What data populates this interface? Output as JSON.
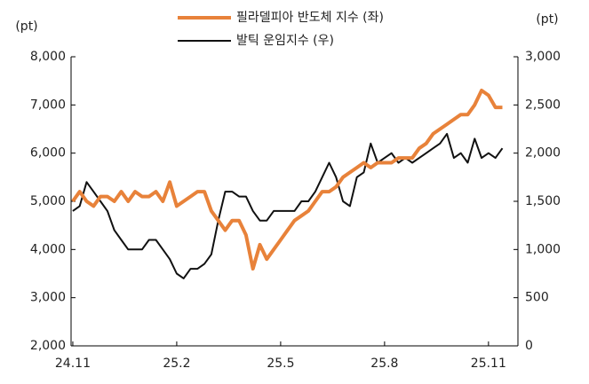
{
  "chart_data": {
    "type": "line",
    "y_label": "(pt)",
    "y2_label": "(pt)",
    "x": [
      0,
      0.2,
      0.4,
      0.6,
      0.8,
      1.0,
      1.2,
      1.4,
      1.6,
      1.8,
      2.0,
      2.2,
      2.4,
      2.6,
      2.8,
      3.0,
      3.2,
      3.4,
      3.6,
      3.8,
      4.0,
      4.2,
      4.4,
      4.6,
      4.8,
      5.0,
      5.2,
      5.4,
      5.6,
      5.8,
      6.0,
      6.2,
      6.4,
      6.6,
      6.8,
      7.0,
      7.2,
      7.4,
      7.6,
      7.8,
      8.0,
      8.2,
      8.4,
      8.6,
      8.8,
      9.0,
      9.2,
      9.4,
      9.6,
      9.8,
      10.0,
      10.2,
      10.4,
      10.6,
      10.8,
      11.0,
      11.2,
      11.4,
      11.6,
      11.8,
      12.0,
      12.2,
      12.4
    ],
    "xlim": [
      -0.05,
      12.85
    ],
    "xticks": [
      {
        "value": 0,
        "label": "24.11"
      },
      {
        "value": 3,
        "label": "25.2"
      },
      {
        "value": 6,
        "label": "25.5"
      },
      {
        "value": 9,
        "label": "25.8"
      },
      {
        "value": 12,
        "label": "25.11"
      }
    ],
    "ylim": [
      2000,
      8000
    ],
    "yticks": [
      {
        "value": 2000,
        "label": "2,000"
      },
      {
        "value": 3000,
        "label": "3,000"
      },
      {
        "value": 4000,
        "label": "4,000"
      },
      {
        "value": 5000,
        "label": "5,000"
      },
      {
        "value": 6000,
        "label": "6,000"
      },
      {
        "value": 7000,
        "label": "7,000"
      },
      {
        "value": 8000,
        "label": "8,000"
      }
    ],
    "y2lim": [
      0,
      3000
    ],
    "y2ticks": [
      0,
      500,
      {
        "value": 1000,
        "label": "1,000"
      },
      {
        "value": 1500,
        "label": "1,500"
      },
      {
        "value": 2000,
        "label": "2,000"
      },
      {
        "value": 2500,
        "label": "2,500"
      },
      {
        "value": 3000,
        "label": "3,000"
      }
    ],
    "series": [
      {
        "name": "필라델피아 반도체 지수 (좌)",
        "color": "#e8823a",
        "axis": "y",
        "values": [
          5000,
          5200,
          5000,
          4900,
          5100,
          5100,
          5000,
          5200,
          5000,
          5200,
          5100,
          5100,
          5200,
          5000,
          5400,
          4900,
          5000,
          5100,
          5200,
          5200,
          4800,
          4600,
          4400,
          4600,
          4600,
          4300,
          3600,
          4100,
          3800,
          4000,
          4200,
          4400,
          4600,
          4700,
          4800,
          5000,
          5200,
          5200,
          5300,
          5500,
          5600,
          5700,
          5800,
          5700,
          5800,
          5800,
          5800,
          5900,
          5900,
          5900,
          6100,
          6200,
          6400,
          6500,
          6600,
          6700,
          6800,
          6800,
          7000,
          7300,
          7200,
          6950,
          6950
        ]
      },
      {
        "name": "발틱 운임지수 (우)",
        "color": "#111111",
        "axis": "y2",
        "values": [
          1400,
          1450,
          1700,
          1600,
          1500,
          1400,
          1200,
          1100,
          1000,
          1000,
          1000,
          1100,
          1100,
          1000,
          900,
          750,
          700,
          800,
          800,
          850,
          950,
          1300,
          1600,
          1600,
          1550,
          1550,
          1400,
          1300,
          1300,
          1400,
          1400,
          1400,
          1400,
          1500,
          1500,
          1600,
          1750,
          1900,
          1750,
          1500,
          1450,
          1750,
          1800,
          2100,
          1900,
          1950,
          2000,
          1900,
          1950,
          1900,
          1950,
          2000,
          2050,
          2100,
          2200,
          1950,
          2000,
          1900,
          2150,
          1950,
          2000,
          1950,
          2050
        ]
      }
    ]
  }
}
